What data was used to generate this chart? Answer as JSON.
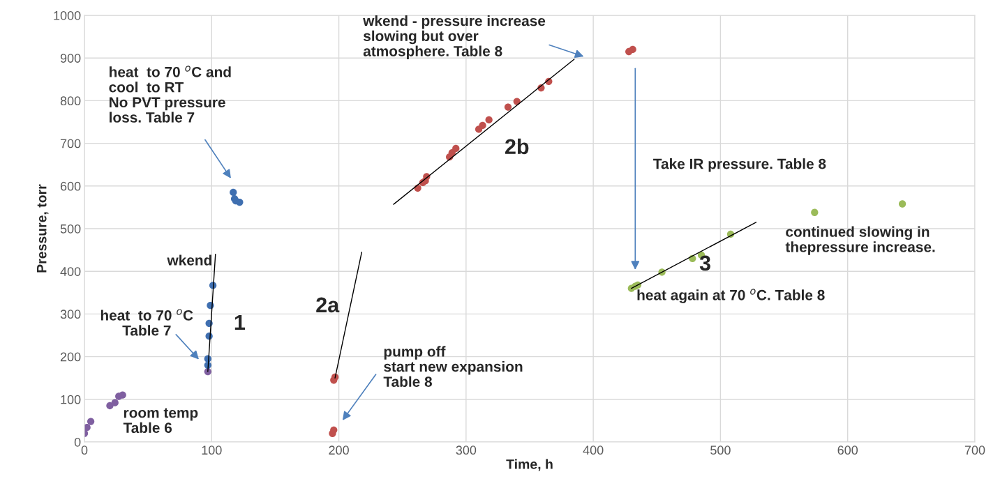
{
  "chart_data": {
    "type": "scatter",
    "xlabel": "Time, h",
    "ylabel": "Pressure, torr",
    "xlim": [
      0,
      700
    ],
    "xticks": [
      0,
      100,
      200,
      300,
      400,
      500,
      600,
      700
    ],
    "ylim": [
      0,
      1000
    ],
    "yticks": [
      0,
      100,
      200,
      300,
      400,
      500,
      600,
      700,
      800,
      900,
      1000
    ],
    "grid": true,
    "series": [
      {
        "color": "#7f5fa0",
        "marker": "circle",
        "x": [
          0,
          2,
          5,
          20,
          24,
          27,
          30,
          97
        ],
        "values": [
          20,
          34,
          48,
          85,
          92,
          107,
          110,
          165
        ]
      },
      {
        "color": "#3f6fb0",
        "marker": "circle",
        "x": [
          97,
          97,
          98,
          98,
          99,
          101,
          117,
          118,
          119,
          122
        ],
        "values": [
          180,
          195,
          248,
          278,
          320,
          367,
          585,
          570,
          565,
          562
        ]
      },
      {
        "color": "#c0504d",
        "marker": "circle",
        "x": [
          195,
          196,
          196,
          197,
          262,
          266,
          268,
          269,
          287,
          289,
          292,
          310,
          313,
          318,
          333,
          340,
          359,
          365,
          428,
          431
        ],
        "values": [
          20,
          28,
          145,
          152,
          595,
          608,
          612,
          622,
          668,
          678,
          688,
          733,
          742,
          755,
          785,
          798,
          830,
          845,
          915,
          920
        ]
      },
      {
        "color": "#9bbb59",
        "marker": "circle",
        "x": [
          430,
          433,
          435,
          454,
          478,
          485,
          508,
          574,
          643
        ],
        "values": [
          360,
          365,
          368,
          398,
          430,
          438,
          487,
          538,
          558
        ]
      },
      {
        "type": "line",
        "color": "#000000",
        "x": [
          97,
          103
        ],
        "values": [
          165,
          440
        ]
      },
      {
        "type": "line",
        "color": "#000000",
        "x": [
          197,
          218
        ],
        "values": [
          150,
          445
        ]
      },
      {
        "type": "line",
        "color": "#000000",
        "x": [
          243,
          385
        ],
        "values": [
          557,
          897
        ]
      },
      {
        "type": "line",
        "color": "#000000",
        "x": [
          430,
          528
        ],
        "values": [
          360,
          515
        ]
      }
    ],
    "annotations": [
      "heat  to 70 $^{o}$C and\ncool  to RT\nNo PVT pressure\nloss. Table 7",
      "wkend - pressure increase\nslowing but over\natmosphere. Table 8",
      "heat  to 70 $^{o}$C\nTable 7",
      "pump off\nstart new expansion\nTable 8",
      "Take IR pressure. Table 8",
      "heat again at 70 $^{o}$C. Table 8",
      "continued slowing in\nthepressure increase.",
      "wkend",
      "1",
      "2a",
      "2b",
      "3",
      "room temp\nTable 6"
    ]
  }
}
